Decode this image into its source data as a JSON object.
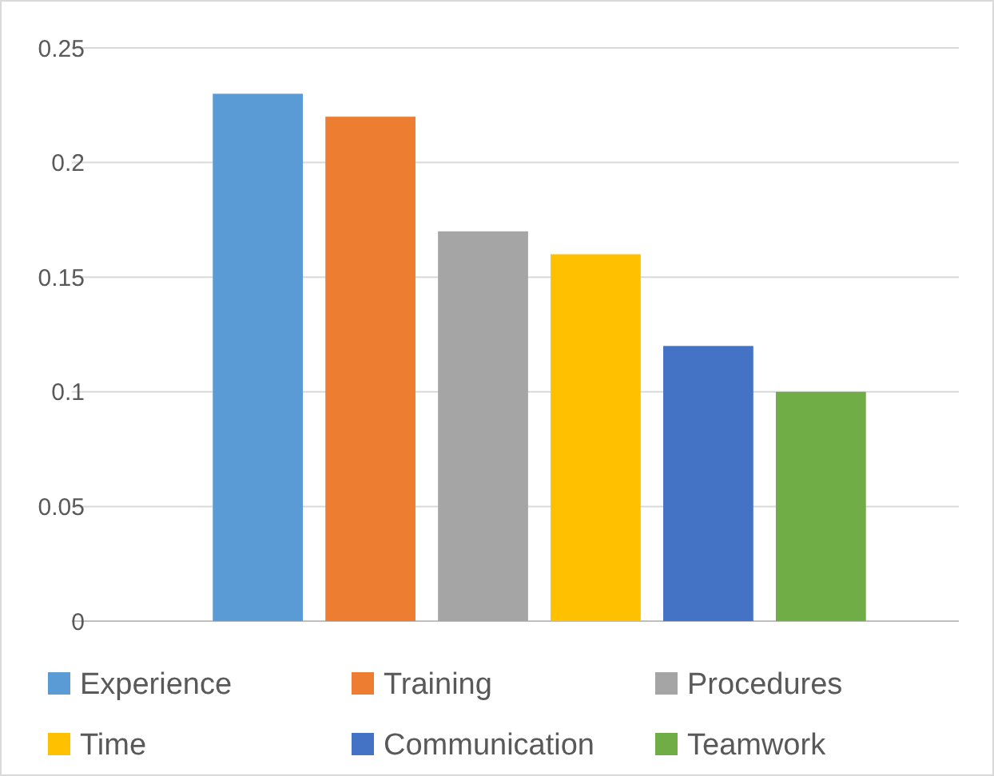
{
  "chart_data": {
    "type": "bar",
    "categories": [
      null
    ],
    "series": [
      {
        "name": "Experience",
        "color": "#5b9bd5",
        "values": [
          0.23
        ]
      },
      {
        "name": "Training",
        "color": "#ed7d31",
        "values": [
          0.22
        ]
      },
      {
        "name": "Procedures",
        "color": "#a5a5a5",
        "values": [
          0.17
        ]
      },
      {
        "name": "Time",
        "color": "#ffc000",
        "values": [
          0.16
        ]
      },
      {
        "name": "Communication",
        "color": "#4472c4",
        "values": [
          0.12
        ]
      },
      {
        "name": "Teamwork",
        "color": "#70ad47",
        "values": [
          0.1
        ]
      }
    ],
    "ylim": [
      0,
      0.25
    ],
    "yticks": [
      0,
      0.05,
      0.1,
      0.15,
      0.2,
      0.25
    ],
    "grid": "y",
    "legend": "bottom"
  }
}
